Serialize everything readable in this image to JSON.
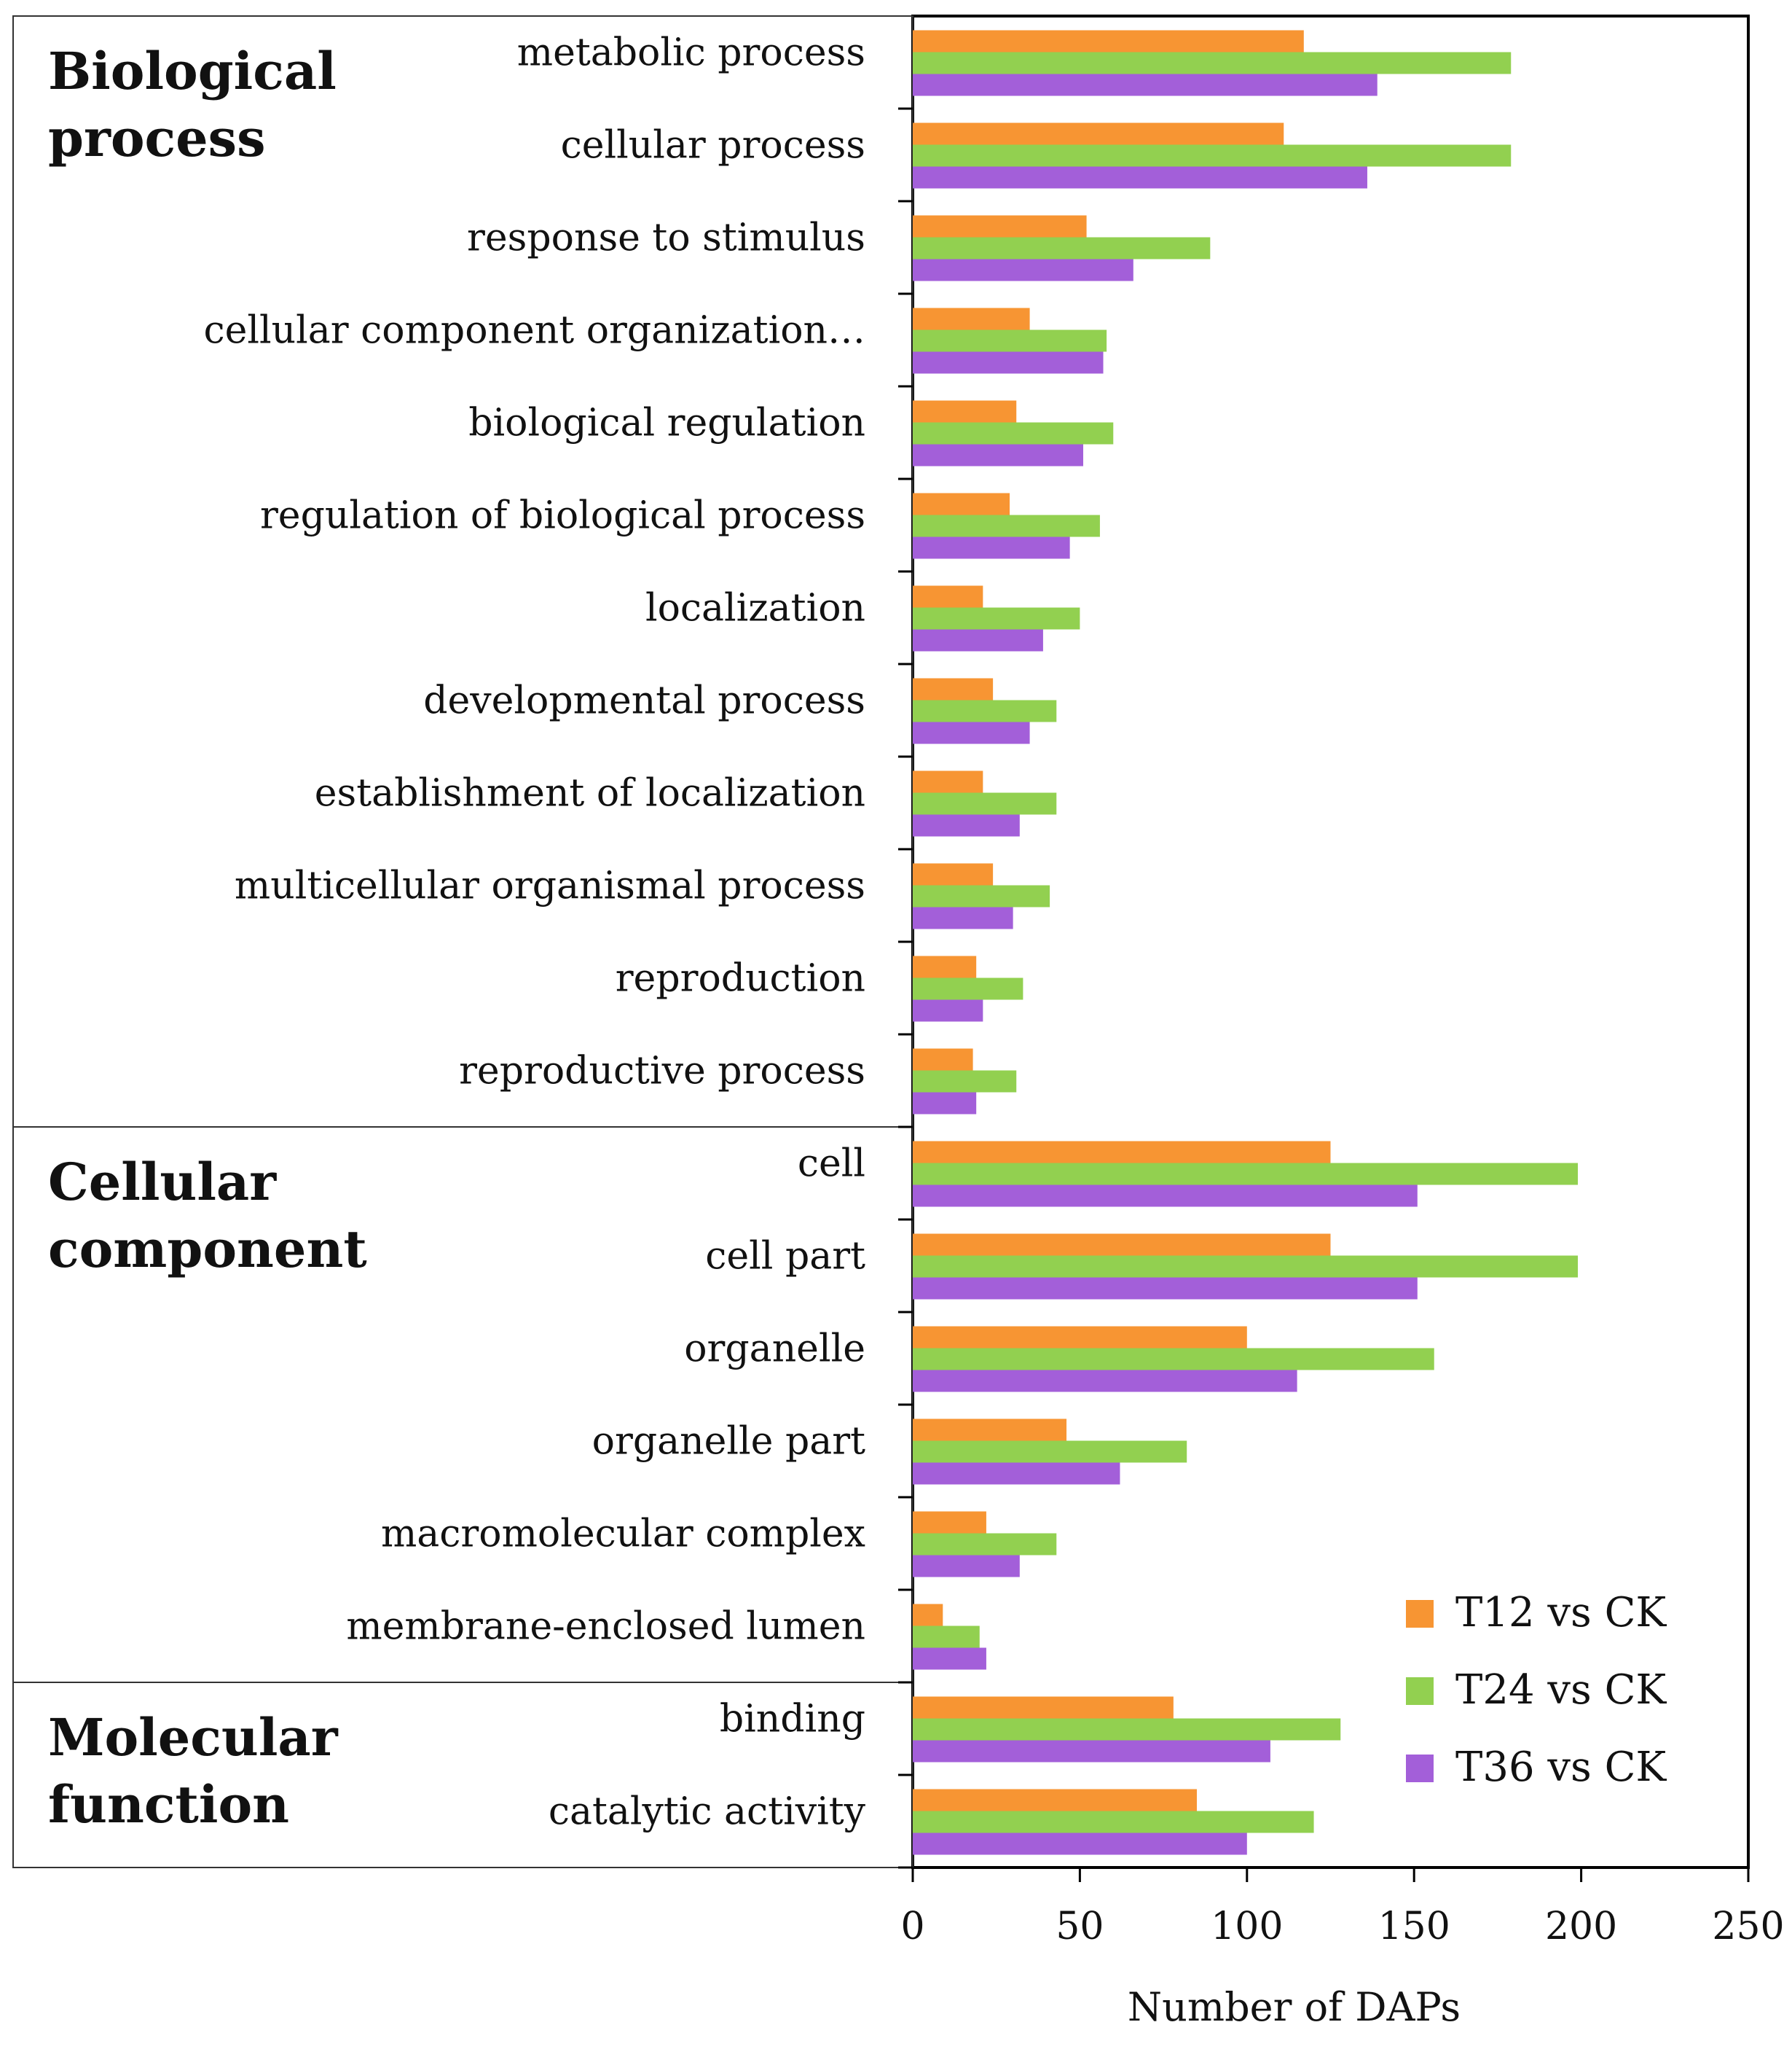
{
  "chart_data": {
    "type": "bar",
    "orientation": "horizontal",
    "xlabel": "Number of DAPs",
    "xlim": [
      0,
      250
    ],
    "xticks": [
      "0",
      "50",
      "100",
      "150",
      "200",
      "250"
    ],
    "groups": [
      {
        "label_lines": [
          "Biological",
          "process"
        ],
        "start": 0,
        "count": 12
      },
      {
        "label_lines": [
          "Cellular",
          "component"
        ],
        "start": 12,
        "count": 6
      },
      {
        "label_lines": [
          "Molecular",
          "function"
        ],
        "start": 18,
        "count": 2
      }
    ],
    "categories": [
      "metabolic process",
      "cellular process",
      "response to stimulus",
      "cellular component organization…",
      "biological regulation",
      "regulation of biological process",
      "localization",
      "developmental process",
      "establishment of localization",
      "multicellular organismal process",
      "reproduction",
      "reproductive process",
      "cell",
      "cell part",
      "organelle",
      "organelle part",
      "macromolecular complex",
      "membrane-enclosed lumen",
      "binding",
      "catalytic activity"
    ],
    "series": [
      {
        "name": "T12 vs CK",
        "color": "#f79533",
        "values": [
          117,
          111,
          52,
          35,
          31,
          29,
          21,
          24,
          21,
          24,
          19,
          18,
          125,
          125,
          100,
          46,
          22,
          9,
          78,
          85
        ]
      },
      {
        "name": "T24 vs CK",
        "color": "#92d050",
        "values": [
          179,
          179,
          89,
          58,
          60,
          56,
          50,
          43,
          43,
          41,
          33,
          31,
          199,
          199,
          156,
          82,
          43,
          20,
          128,
          120
        ]
      },
      {
        "name": "T36 vs CK",
        "color": "#a35fd9",
        "values": [
          139,
          136,
          66,
          57,
          51,
          47,
          39,
          35,
          32,
          30,
          21,
          19,
          151,
          151,
          115,
          62,
          32,
          22,
          107,
          100
        ]
      }
    ],
    "legend_position": "bottom-right"
  }
}
